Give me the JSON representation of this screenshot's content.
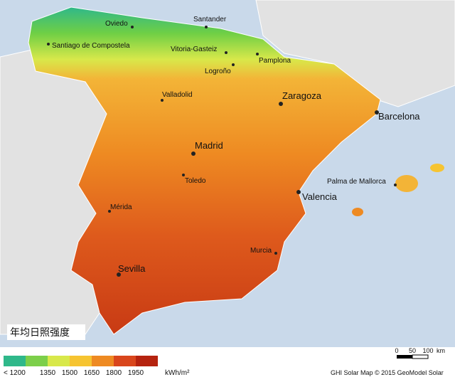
{
  "title": "年均日照强度",
  "cities": [
    {
      "name": "Oviedo",
      "major": false
    },
    {
      "name": "Santander",
      "major": false
    },
    {
      "name": "Santiago de Compostela",
      "major": false
    },
    {
      "name": "Vitoria-Gasteiz",
      "major": false
    },
    {
      "name": "Pamplona",
      "major": false
    },
    {
      "name": "Logroño",
      "major": false
    },
    {
      "name": "Valladolid",
      "major": false
    },
    {
      "name": "Zaragoza",
      "major": true
    },
    {
      "name": "Barcelona",
      "major": true
    },
    {
      "name": "Madrid",
      "major": true
    },
    {
      "name": "Toledo",
      "major": false
    },
    {
      "name": "Palma de Mallorca",
      "major": false
    },
    {
      "name": "Valencia",
      "major": true
    },
    {
      "name": "Mérida",
      "major": false
    },
    {
      "name": "Murcia",
      "major": false
    },
    {
      "name": "Sevilla",
      "major": true
    }
  ],
  "legend": {
    "items": [
      {
        "label": "< 1200",
        "color": "#2fb88a"
      },
      {
        "label": "1350",
        "color": "#7ccf4a"
      },
      {
        "label": "1500",
        "color": "#d8e84a"
      },
      {
        "label": "1650",
        "color": "#f6c431"
      },
      {
        "label": "1800",
        "color": "#ee8a22"
      },
      {
        "label": "1950",
        "color": "#d9461c"
      }
    ],
    "last_color": "#b5230f",
    "unit": "kWh/m²"
  },
  "scale": {
    "labels": [
      "0",
      "50",
      "100",
      "km"
    ]
  },
  "credit": "GHI Solar Map © 2015 GeoModel Solar"
}
